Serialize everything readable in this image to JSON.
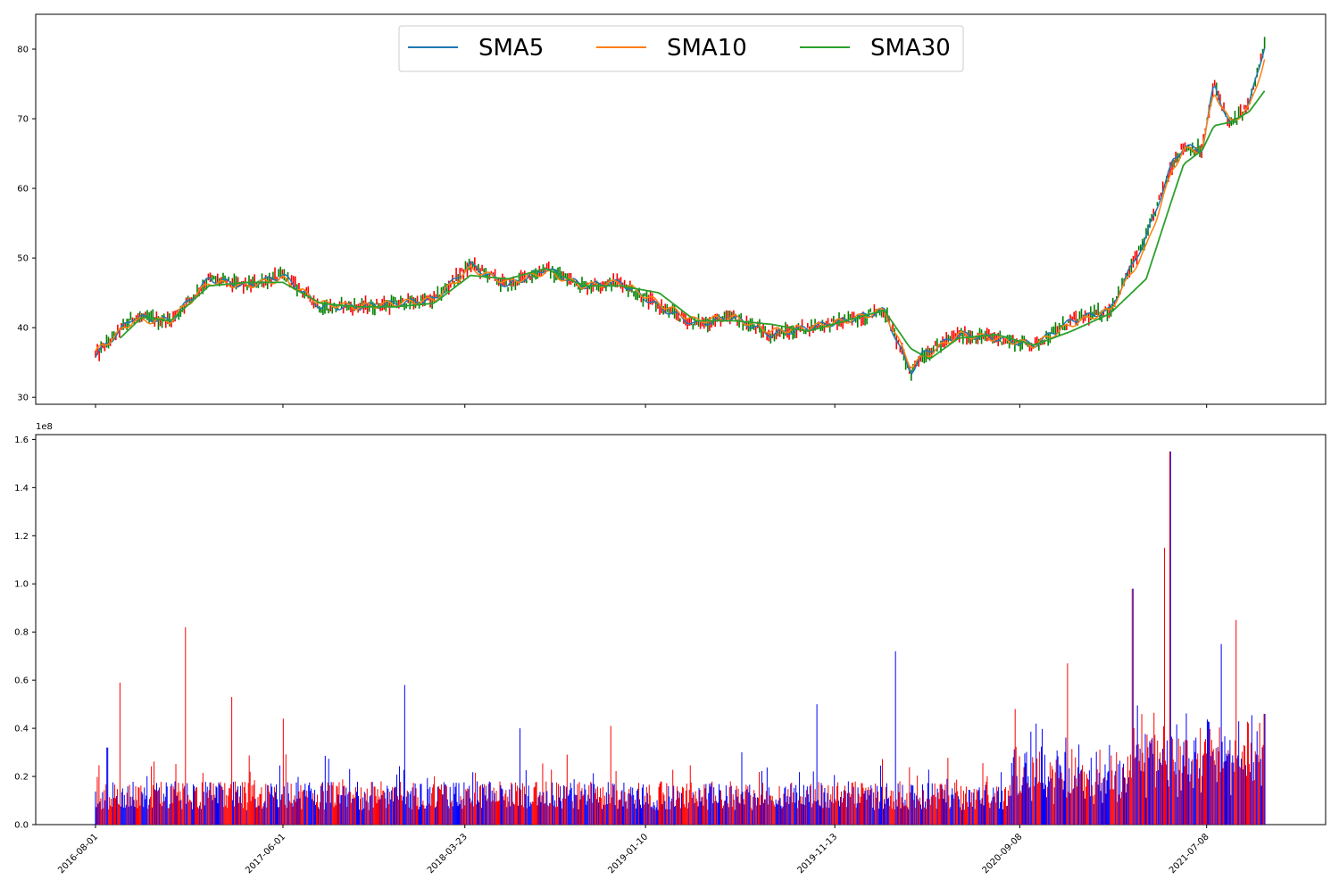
{
  "chart_data": [
    {
      "type": "line",
      "panel": "price",
      "ylim": [
        29,
        85
      ],
      "yticks": [
        30,
        40,
        50,
        60,
        70,
        80
      ],
      "legend": {
        "placement": "top-center",
        "ncols": 3
      },
      "series": [
        {
          "name": "SMA5",
          "color": "#1f77b4",
          "x": [
            "2016-08-01",
            "2016-10-01",
            "2016-12-01",
            "2017-02-01",
            "2017-04-01",
            "2017-06-01",
            "2017-08-01",
            "2017-10-01",
            "2017-12-01",
            "2018-02-01",
            "2018-04-01",
            "2018-06-01",
            "2018-08-01",
            "2018-10-01",
            "2018-12-01",
            "2019-02-01",
            "2019-04-01",
            "2019-06-01",
            "2019-08-01",
            "2019-10-01",
            "2019-12-01",
            "2020-02-01",
            "2020-03-15",
            "2020-04-01",
            "2020-06-01",
            "2020-08-01",
            "2020-10-01",
            "2020-12-01",
            "2021-02-01",
            "2021-04-01",
            "2021-05-15",
            "2021-06-01",
            "2021-07-01",
            "2021-07-20",
            "2021-08-15",
            "2021-09-15",
            "2021-10-10"
          ],
          "values": [
            36.0,
            41.5,
            41.0,
            47.0,
            46.0,
            47.5,
            43.0,
            43.0,
            43.5,
            44.0,
            49.0,
            46.0,
            48.5,
            46.0,
            46.5,
            43.0,
            40.5,
            41.5,
            39.0,
            40.0,
            41.0,
            42.5,
            33.5,
            36.0,
            39.0,
            38.5,
            37.5,
            41.0,
            42.5,
            53.0,
            64.0,
            66.0,
            65.5,
            75.0,
            69.0,
            72.0,
            80.5
          ]
        },
        {
          "name": "SMA10",
          "color": "#ff7f0e",
          "x": [
            "2016-08-01",
            "2016-10-01",
            "2016-12-01",
            "2017-02-01",
            "2017-04-01",
            "2017-06-01",
            "2017-08-01",
            "2017-10-01",
            "2017-12-01",
            "2018-02-01",
            "2018-04-01",
            "2018-06-01",
            "2018-08-01",
            "2018-10-01",
            "2018-12-01",
            "2019-02-01",
            "2019-04-01",
            "2019-06-01",
            "2019-08-01",
            "2019-10-01",
            "2019-12-01",
            "2020-02-01",
            "2020-03-15",
            "2020-04-01",
            "2020-06-01",
            "2020-08-01",
            "2020-10-01",
            "2020-12-01",
            "2021-02-01",
            "2021-04-01",
            "2021-05-15",
            "2021-06-01",
            "2021-07-01",
            "2021-07-20",
            "2021-08-15",
            "2021-09-15",
            "2021-10-10"
          ],
          "values": [
            36.5,
            41.0,
            41.0,
            46.5,
            46.0,
            47.0,
            43.5,
            43.0,
            43.5,
            44.0,
            48.5,
            46.5,
            48.0,
            46.0,
            46.5,
            43.5,
            41.0,
            41.5,
            39.5,
            40.0,
            41.0,
            42.5,
            34.5,
            35.5,
            39.0,
            38.5,
            37.5,
            40.5,
            42.5,
            51.5,
            63.0,
            65.5,
            65.5,
            74.0,
            69.5,
            71.5,
            78.5
          ]
        },
        {
          "name": "SMA30",
          "color": "#2ca02c",
          "x": [
            "2016-09-10",
            "2016-10-15",
            "2016-12-01",
            "2017-02-01",
            "2017-04-01",
            "2017-06-01",
            "2017-08-01",
            "2017-10-01",
            "2017-12-01",
            "2018-02-01",
            "2018-04-01",
            "2018-06-01",
            "2018-08-01",
            "2018-10-01",
            "2018-12-01",
            "2019-02-01",
            "2019-04-01",
            "2019-06-01",
            "2019-08-01",
            "2019-10-01",
            "2019-12-01",
            "2020-02-01",
            "2020-03-15",
            "2020-04-15",
            "2020-06-01",
            "2020-08-01",
            "2020-10-01",
            "2020-12-01",
            "2021-02-01",
            "2021-04-01",
            "2021-05-15",
            "2021-06-01",
            "2021-07-01",
            "2021-07-20",
            "2021-08-15",
            "2021-09-15",
            "2021-10-10"
          ],
          "values": [
            38.5,
            41.5,
            41.0,
            46.0,
            46.5,
            46.5,
            43.5,
            43.0,
            43.0,
            43.5,
            47.5,
            47.0,
            48.5,
            46.0,
            46.0,
            45.0,
            41.0,
            41.0,
            40.5,
            39.5,
            41.0,
            42.5,
            37.0,
            35.5,
            38.5,
            39.0,
            37.5,
            39.5,
            42.0,
            47.0,
            59.0,
            63.5,
            65.5,
            69.0,
            69.5,
            71.0,
            74.0
          ]
        }
      ]
    },
    {
      "type": "bar",
      "panel": "volume",
      "scale_label": "1e8",
      "ylim": [
        0,
        1.62
      ],
      "yticks": [
        "0.0",
        "0.2",
        "0.4",
        "0.6",
        "0.8",
        "1.0",
        "1.2",
        "1.4",
        "1.6"
      ],
      "up_color": "#ff0000",
      "down_color": "#0000ff",
      "spikes": [
        {
          "date": "2016-08-20",
          "value": 0.32
        },
        {
          "date": "2016-09-10",
          "value": 0.59
        },
        {
          "date": "2016-12-25",
          "value": 0.82
        },
        {
          "date": "2017-03-10",
          "value": 0.53
        },
        {
          "date": "2017-06-01",
          "value": 0.44
        },
        {
          "date": "2017-12-15",
          "value": 0.58
        },
        {
          "date": "2018-06-20",
          "value": 0.4
        },
        {
          "date": "2018-11-15",
          "value": 0.41
        },
        {
          "date": "2019-10-15",
          "value": 0.5
        },
        {
          "date": "2020-02-20",
          "value": 0.72
        },
        {
          "date": "2020-09-01",
          "value": 0.48
        },
        {
          "date": "2020-11-25",
          "value": 0.67
        },
        {
          "date": "2021-03-10",
          "value": 0.98
        },
        {
          "date": "2021-05-01",
          "value": 1.15
        },
        {
          "date": "2021-05-10",
          "value": 1.55
        },
        {
          "date": "2021-08-01",
          "value": 0.75
        },
        {
          "date": "2021-08-25",
          "value": 0.85
        },
        {
          "date": "2021-10-10",
          "value": 0.46
        }
      ]
    }
  ],
  "x_axis": {
    "start": "2016-08-01",
    "end": "2021-10-12",
    "tick_labels": [
      "2016-08-01",
      "2017-06-01",
      "2018-03-23",
      "2019-01-10",
      "2019-11-13",
      "2020-09-08",
      "2021-07-08"
    ]
  }
}
